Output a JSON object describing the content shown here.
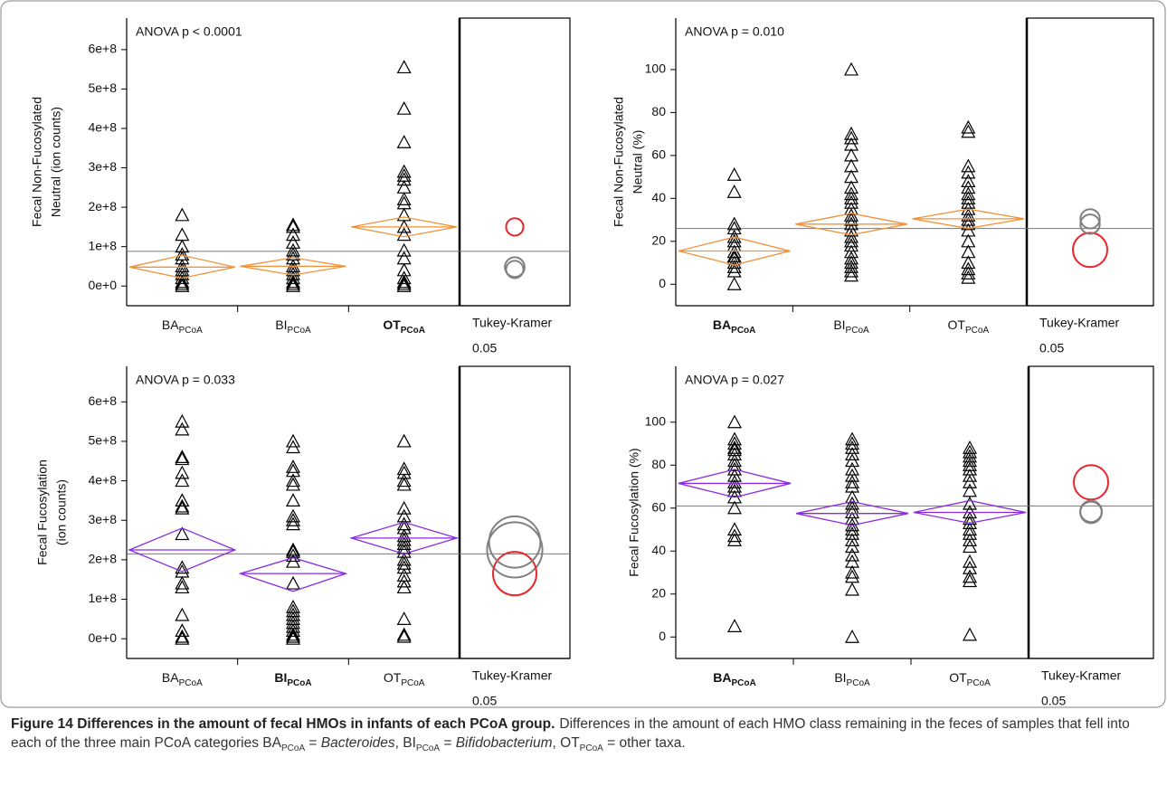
{
  "chart_data": [
    {
      "type": "diamond",
      "annotation": "ANOVA p < 0.0001",
      "ylabel": [
        "Fecal Non-Fucosylated",
        "Neutral (ion counts)"
      ],
      "categories": [
        "BA",
        "BI",
        "OT"
      ],
      "category_subscript": "PCoA",
      "highlight": 2,
      "color": "#f0923a",
      "highlight_color": "#e8262b",
      "ylim": [
        -50000000,
        680000000
      ],
      "yticks": [
        {
          "value": 0,
          "label": "0e+0"
        },
        {
          "value": 100000000,
          "label": "1e+8"
        },
        {
          "value": 200000000,
          "label": "2e+8"
        },
        {
          "value": 300000000,
          "label": "3e+8"
        },
        {
          "value": 400000000,
          "label": "4e+8"
        },
        {
          "value": 500000000,
          "label": "5e+8"
        },
        {
          "value": 600000000,
          "label": "6e+8"
        }
      ],
      "grand_mean": 88000000,
      "comparison_label": "Tukey-Kramer",
      "alpha": 0.05,
      "groups": [
        {
          "values": [
            180000000,
            130000000,
            100000000,
            80000000,
            70000000,
            50000000,
            40000000,
            30000000,
            20000000,
            10000000,
            5000000,
            0
          ],
          "mean": 48000000,
          "ci": [
            20000000,
            78000000
          ],
          "circle": {
            "center": 48000000,
            "radius": 25000000,
            "color": "#808080"
          }
        },
        {
          "values": [
            155000000,
            150000000,
            130000000,
            110000000,
            90000000,
            80000000,
            70000000,
            50000000,
            40000000,
            30000000,
            20000000,
            10000000,
            5000000,
            0
          ],
          "mean": 50000000,
          "ci": [
            28000000,
            72000000
          ],
          "circle": {
            "center": 42000000,
            "radius": 22000000,
            "color": "#808080"
          }
        },
        {
          "values": [
            555000000,
            450000000,
            365000000,
            290000000,
            280000000,
            270000000,
            250000000,
            220000000,
            210000000,
            180000000,
            150000000,
            130000000,
            90000000,
            70000000,
            40000000,
            20000000,
            10000000,
            5000000,
            0
          ],
          "mean": 150000000,
          "ci": [
            125000000,
            175000000
          ],
          "circle": {
            "center": 150000000,
            "radius": 22000000,
            "color": "#e8262b"
          }
        }
      ]
    },
    {
      "type": "diamond",
      "annotation": "ANOVA p = 0.010",
      "ylabel": [
        "Fecal Non-Fucosylated",
        "Neutral  (%)"
      ],
      "categories": [
        "BA",
        "BI",
        "OT"
      ],
      "category_subscript": "PCoA",
      "highlight": 0,
      "color": "#f0923a",
      "highlight_color": "#e8262b",
      "ylim": [
        -10,
        124
      ],
      "yticks": [
        0,
        20,
        40,
        60,
        80,
        100
      ],
      "grand_mean": 26,
      "comparison_label": "Tukey-Kramer",
      "alpha": 0.05,
      "groups": [
        {
          "values": [
            51,
            43,
            28,
            26,
            22,
            20,
            18,
            15,
            13,
            12,
            10,
            8,
            6,
            0
          ],
          "mean": 15.5,
          "ci": [
            9,
            22
          ],
          "circle": {
            "center": 16,
            "radius": 8,
            "color": "#e8262b"
          }
        },
        {
          "values": [
            100,
            70,
            68,
            65,
            60,
            55,
            50,
            45,
            42,
            40,
            38,
            35,
            32,
            30,
            28,
            25,
            22,
            20,
            18,
            15,
            12,
            10,
            8,
            6,
            4
          ],
          "mean": 28,
          "ci": [
            23,
            33
          ],
          "circle": {
            "center": 28,
            "radius": 4.5,
            "color": "#808080"
          }
        },
        {
          "values": [
            73,
            71,
            55,
            52,
            48,
            45,
            42,
            40,
            38,
            35,
            32,
            30,
            28,
            25,
            20,
            15,
            10,
            7,
            5,
            3
          ],
          "mean": 30.5,
          "ci": [
            26,
            35
          ],
          "circle": {
            "center": 30.5,
            "radius": 4.5,
            "color": "#808080"
          }
        }
      ]
    },
    {
      "type": "diamond",
      "annotation": "ANOVA p = 0.033",
      "ylabel": [
        "Fecal Fucosylation",
        "(ion counts)"
      ],
      "categories": [
        "BA",
        "BI",
        "OT"
      ],
      "category_subscript": "PCoA",
      "highlight": 1,
      "color": "#8a2be2",
      "highlight_color": "#e8262b",
      "ylim": [
        -50000000,
        690000000
      ],
      "yticks": [
        {
          "value": 0,
          "label": "0e+0"
        },
        {
          "value": 100000000,
          "label": "1e+8"
        },
        {
          "value": 200000000,
          "label": "2e+8"
        },
        {
          "value": 300000000,
          "label": "3e+8"
        },
        {
          "value": 400000000,
          "label": "4e+8"
        },
        {
          "value": 500000000,
          "label": "5e+8"
        },
        {
          "value": 600000000,
          "label": "6e+8"
        }
      ],
      "grand_mean": 215000000,
      "comparison_label": "Tukey-Kramer",
      "alpha": 0.05,
      "groups": [
        {
          "values": [
            550000000,
            530000000,
            460000000,
            455000000,
            420000000,
            400000000,
            350000000,
            335000000,
            330000000,
            265000000,
            180000000,
            170000000,
            140000000,
            130000000,
            60000000,
            20000000,
            5000000,
            0
          ],
          "mean": 225000000,
          "ci": [
            170000000,
            280000000
          ],
          "circle": {
            "center": 225000000,
            "radius": 70000000,
            "color": "#808080"
          }
        },
        {
          "values": [
            500000000,
            485000000,
            435000000,
            425000000,
            400000000,
            390000000,
            350000000,
            310000000,
            300000000,
            290000000,
            225000000,
            220000000,
            210000000,
            195000000,
            140000000,
            80000000,
            70000000,
            60000000,
            50000000,
            40000000,
            30000000,
            20000000,
            10000000,
            5000000,
            0
          ],
          "mean": 165000000,
          "ci": [
            120000000,
            205000000
          ],
          "circle": {
            "center": 165000000,
            "radius": 55000000,
            "color": "#e8262b"
          }
        },
        {
          "values": [
            500000000,
            430000000,
            420000000,
            400000000,
            390000000,
            330000000,
            310000000,
            290000000,
            280000000,
            260000000,
            250000000,
            240000000,
            230000000,
            220000000,
            200000000,
            190000000,
            180000000,
            160000000,
            145000000,
            130000000,
            50000000,
            10000000,
            5000000
          ],
          "mean": 255000000,
          "ci": [
            215000000,
            295000000
          ],
          "circle": {
            "center": 245000000,
            "radius": 65000000,
            "color": "#808080"
          }
        }
      ]
    },
    {
      "type": "diamond",
      "annotation": "ANOVA p = 0.027",
      "ylabel": [
        "Fecal Fucosylation  (%)"
      ],
      "categories": [
        "BA",
        "BI",
        "OT"
      ],
      "category_subscript": "PCoA",
      "highlight": 0,
      "color": "#8a2be2",
      "highlight_color": "#e8262b",
      "ylim": [
        -10,
        126
      ],
      "yticks": [
        0,
        20,
        40,
        60,
        80,
        100
      ],
      "grand_mean": 61,
      "comparison_label": "Tukey-Kramer",
      "alpha": 0.05,
      "groups": [
        {
          "values": [
            100,
            92,
            90,
            88,
            87,
            85,
            82,
            80,
            78,
            75,
            72,
            70,
            68,
            65,
            60,
            50,
            47,
            45,
            5
          ],
          "mean": 71.5,
          "ci": [
            65,
            78
          ],
          "circle": {
            "center": 72,
            "radius": 8,
            "color": "#e8262b"
          }
        },
        {
          "values": [
            92,
            90,
            88,
            85,
            82,
            78,
            75,
            72,
            70,
            65,
            62,
            60,
            58,
            55,
            52,
            50,
            48,
            45,
            42,
            38,
            35,
            30,
            28,
            22,
            0
          ],
          "mean": 57.5,
          "ci": [
            52,
            63
          ],
          "circle": {
            "center": 58,
            "radius": 5,
            "color": "#808080"
          }
        },
        {
          "values": [
            88,
            86,
            84,
            82,
            80,
            78,
            75,
            72,
            68,
            62,
            58,
            55,
            53,
            50,
            48,
            45,
            42,
            35,
            32,
            28,
            26,
            1
          ],
          "mean": 58,
          "ci": [
            53,
            63.5
          ],
          "circle": {
            "center": 58.5,
            "radius": 5,
            "color": "#808080"
          }
        }
      ]
    }
  ],
  "caption": {
    "title": "Figure 14 Differences in the amount of fecal HMOs in infants of each PCoA group.",
    "body": [
      {
        "text": "Differences in the amount of each HMO class remaining in the feces of samples that fell into each of the three main PCoA categories BA"
      },
      {
        "text": "PCoA",
        "style": "sub"
      },
      {
        "text": " = "
      },
      {
        "text": "Bacteroides",
        "style": "italic"
      },
      {
        "text": ", BI"
      },
      {
        "text": "PCoA",
        "style": "sub"
      },
      {
        "text": " = "
      },
      {
        "text": "Bifidobacterium",
        "style": "italic"
      },
      {
        "text": ", OT"
      },
      {
        "text": "PCoA",
        "style": "sub"
      },
      {
        "text": " = other taxa."
      }
    ]
  }
}
